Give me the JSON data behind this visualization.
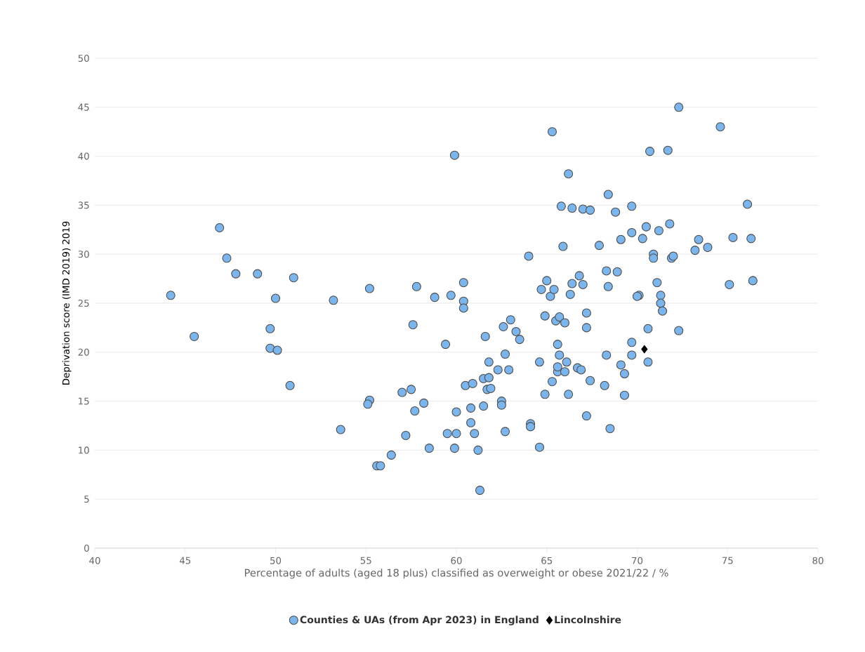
{
  "chart_data": {
    "type": "scatter",
    "xlabel": "Percentage of adults (aged 18 plus) classified as overweight or obese 2021/22 / %",
    "ylabel": "Deprivation score (IMD 2019) 2019",
    "xlim": [
      40,
      80
    ],
    "xticks": [
      40,
      45,
      50,
      55,
      60,
      65,
      70,
      75,
      80
    ],
    "ylim": [
      0,
      50
    ],
    "yticks": [
      0,
      5,
      10,
      15,
      20,
      25,
      30,
      35,
      40,
      45,
      50
    ],
    "grid": "y",
    "legend": "bottom",
    "series": [
      {
        "name": "Counties & UAs (from Apr 2023) in England",
        "color": "#7cb5ec",
        "marker": "circle",
        "x": [
          44.2,
          45.5,
          46.9,
          47.3,
          47.8,
          49.0,
          51.0,
          50.0,
          49.7,
          49.7,
          50.1,
          50.8,
          53.2,
          53.6,
          55.2,
          55.2,
          55.1,
          55.6,
          55.8,
          56.4,
          57.0,
          57.2,
          57.6,
          57.5,
          57.8,
          57.7,
          58.2,
          58.5,
          58.8,
          59.4,
          59.7,
          59.5,
          59.9,
          60.0,
          60.0,
          59.9,
          60.4,
          60.4,
          60.4,
          60.5,
          60.8,
          60.8,
          60.9,
          61.0,
          61.2,
          61.3,
          61.6,
          61.5,
          61.5,
          61.7,
          61.8,
          61.8,
          61.9,
          62.3,
          62.5,
          62.5,
          62.6,
          62.7,
          62.7,
          62.9,
          63.0,
          63.3,
          63.5,
          64.0,
          64.1,
          64.1,
          64.6,
          64.6,
          64.7,
          64.9,
          64.9,
          65.0,
          65.3,
          65.3,
          65.2,
          65.4,
          65.5,
          65.6,
          65.6,
          65.7,
          65.6,
          65.7,
          65.8,
          65.9,
          66.0,
          66.0,
          66.1,
          66.2,
          66.3,
          66.2,
          66.4,
          66.4,
          66.7,
          66.8,
          66.9,
          67.0,
          67.0,
          67.2,
          67.2,
          67.2,
          67.4,
          67.4,
          67.9,
          68.2,
          68.3,
          68.4,
          68.3,
          68.4,
          68.5,
          68.8,
          68.9,
          69.1,
          69.1,
          69.3,
          69.3,
          69.7,
          69.7,
          69.7,
          69.7,
          70.1,
          70.0,
          70.3,
          70.5,
          70.6,
          70.7,
          70.6,
          70.9,
          70.9,
          71.1,
          71.2,
          71.3,
          71.3,
          71.4,
          71.7,
          71.8,
          71.9,
          72.0,
          72.3,
          72.3,
          73.2,
          73.4,
          73.9,
          74.6,
          75.1,
          75.3,
          76.1,
          76.3,
          76.4
        ],
        "values": [
          25.8,
          21.6,
          32.7,
          29.6,
          28.0,
          28.0,
          27.6,
          25.5,
          22.4,
          20.4,
          20.2,
          16.6,
          25.3,
          12.1,
          26.5,
          15.1,
          14.7,
          8.4,
          8.4,
          9.5,
          15.9,
          11.5,
          22.8,
          16.2,
          26.7,
          14.0,
          14.8,
          10.2,
          25.6,
          20.8,
          25.8,
          11.7,
          40.1,
          13.9,
          11.7,
          10.2,
          27.1,
          25.2,
          24.5,
          16.6,
          14.3,
          12.8,
          16.8,
          11.7,
          10.0,
          5.9,
          21.6,
          17.3,
          14.5,
          16.2,
          17.4,
          19.0,
          16.3,
          18.2,
          15.0,
          14.6,
          22.6,
          19.8,
          11.9,
          18.2,
          23.3,
          22.1,
          21.3,
          29.8,
          12.7,
          12.4,
          10.3,
          19.0,
          26.4,
          23.7,
          15.7,
          27.3,
          17.0,
          42.5,
          25.7,
          26.4,
          23.2,
          20.8,
          18.0,
          19.7,
          18.5,
          23.6,
          34.9,
          30.8,
          23.0,
          18.0,
          19.0,
          38.2,
          25.9,
          15.7,
          34.7,
          27.0,
          18.4,
          27.8,
          18.2,
          34.6,
          26.9,
          24.0,
          22.5,
          13.5,
          34.5,
          17.1,
          30.9,
          16.6,
          19.7,
          36.1,
          28.3,
          26.7,
          12.2,
          34.3,
          28.2,
          31.5,
          18.7,
          17.8,
          15.6,
          34.9,
          32.2,
          21.0,
          19.7,
          25.8,
          25.7,
          31.6,
          32.8,
          22.4,
          40.5,
          19.0,
          30.0,
          29.6,
          27.1,
          32.4,
          25.8,
          25.0,
          24.2,
          40.6,
          33.1,
          29.6,
          29.8,
          45.0,
          22.2,
          30.4,
          31.5,
          30.7,
          43.0,
          26.9,
          31.7,
          35.1,
          31.6,
          27.3
        ]
      },
      {
        "name": "Lincolnshire",
        "color": "#000000",
        "marker": "diamond",
        "x": [
          70.4
        ],
        "values": [
          20.3
        ]
      }
    ]
  }
}
